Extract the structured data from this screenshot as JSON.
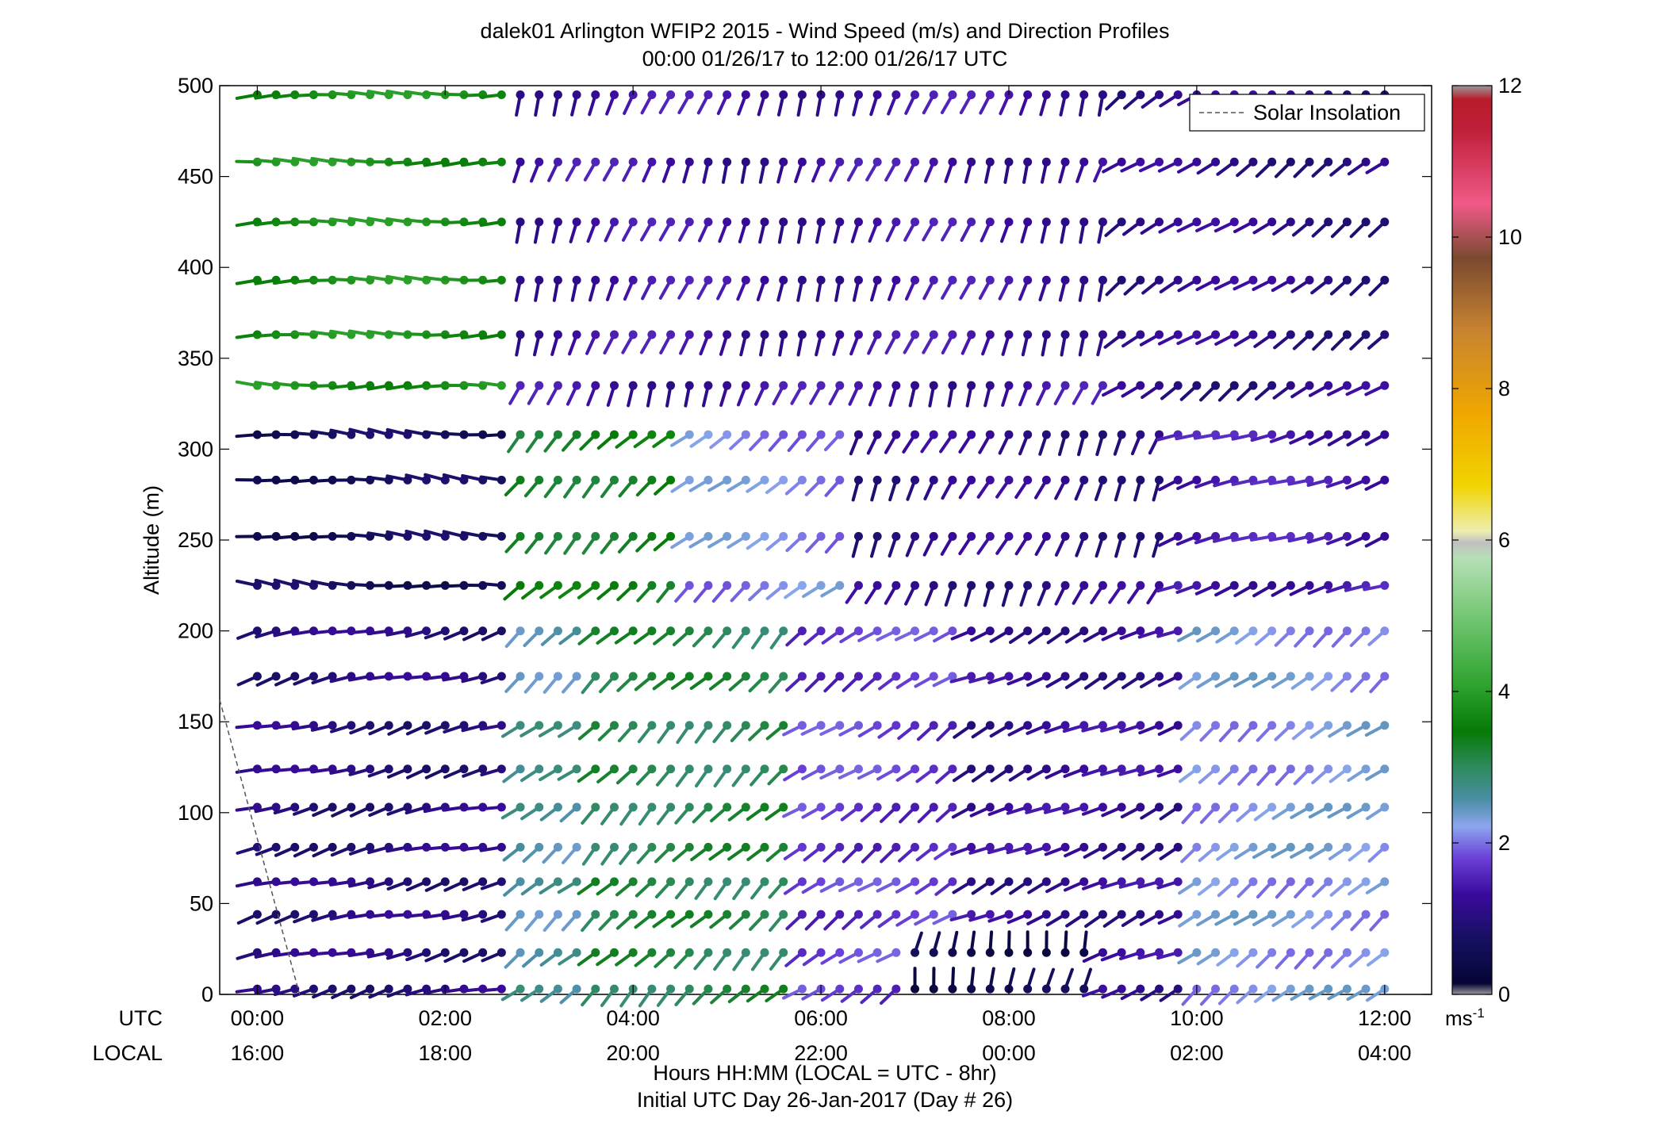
{
  "chart_data": {
    "type": "scatter",
    "subtype": "wind-barb-profile",
    "title": "dalek01 Arlington WFIP2 2015 - Wind Speed (m/s) and Direction Profiles",
    "subtitle": "00:00 01/26/17 to 12:00 01/26/17  UTC",
    "ylabel": "Altitude (m)",
    "xlabel": "Hours HH:MM  (LOCAL = UTC - 8hr)",
    "xlabel2": "Initial UTC Day 26-Jan-2017 (Day # 26)",
    "utc_row_label": "UTC",
    "local_row_label": "LOCAL",
    "x_ticks_utc": [
      "00:00",
      "02:00",
      "04:00",
      "06:00",
      "08:00",
      "10:00",
      "12:00"
    ],
    "x_ticks_local": [
      "16:00",
      "18:00",
      "20:00",
      "22:00",
      "00:00",
      "02:00",
      "04:00"
    ],
    "x_tick_hours": [
      0,
      2,
      4,
      6,
      8,
      10,
      12
    ],
    "xlim_hours": [
      -0.4,
      12.5
    ],
    "y_ticks": [
      0,
      50,
      100,
      150,
      200,
      250,
      300,
      350,
      400,
      450,
      500
    ],
    "ylim": [
      0,
      500
    ],
    "legend": {
      "entries": [
        "Solar Insolation"
      ],
      "placement": "top-right"
    },
    "colorbar": {
      "label": "ms",
      "label_exponent": "-1",
      "ticks": [
        0,
        2,
        4,
        6,
        8,
        10,
        12
      ],
      "range": [
        0,
        12
      ]
    },
    "altitudes": [
      3,
      23,
      44,
      62,
      81,
      103,
      124,
      148,
      175,
      200,
      225,
      252,
      283,
      308,
      335,
      363,
      393,
      425,
      458,
      495
    ],
    "time_step_hours": 0.2,
    "solar_insolation": {
      "x": [
        -0.4,
        0.45
      ],
      "y": [
        162,
        0
      ]
    },
    "regimes": [
      {
        "name": "low-level",
        "alt_max": 200,
        "segments": [
          {
            "t": [
              0,
              2.8
            ],
            "speed": 1.0,
            "dir": 255
          },
          {
            "t": [
              2.8,
              3.6
            ],
            "speed": 2.6,
            "dir": 230
          },
          {
            "t": [
              3.6,
              5.8
            ],
            "speed": 3.1,
            "dir": 225
          },
          {
            "t": [
              5.8,
              7.6
            ],
            "speed": 1.7,
            "dir": 235
          },
          {
            "t": [
              7.6,
              9.8
            ],
            "speed": 1.2,
            "dir": 245
          },
          {
            "t": [
              9.8,
              12.0
            ],
            "speed": 2.2,
            "dir": 232
          }
        ]
      },
      {
        "name": "surface-calm",
        "alt_max": 30,
        "segments": [
          {
            "t": [
              7.0,
              8.8
            ],
            "speed": 0.4,
            "dir": 10
          }
        ]
      },
      {
        "name": "mid-level",
        "alt_max": 320,
        "segments": [
          {
            "t": [
              0,
              2.8
            ],
            "speed": 0.6,
            "dir": 275
          },
          {
            "t": [
              2.8,
              4.6
            ],
            "speed": 3.4,
            "dir": 225
          },
          {
            "t": [
              4.6,
              6.4
            ],
            "speed": 2.1,
            "dir": 230
          },
          {
            "t": [
              6.4,
              9.6
            ],
            "speed": 1.1,
            "dir": 205
          },
          {
            "t": [
              9.6,
              12.0
            ],
            "speed": 1.4,
            "dir": 250
          }
        ]
      },
      {
        "name": "upper-level",
        "alt_max": 500,
        "segments": [
          {
            "t": [
              0,
              2.6
            ],
            "speed": 3.8,
            "dir": 270
          },
          {
            "t": [
              2.6,
              9.0
            ],
            "speed": 1.3,
            "dir": 200
          },
          {
            "t": [
              9.0,
              12.0
            ],
            "speed": 1.1,
            "dir": 235
          }
        ]
      }
    ]
  }
}
